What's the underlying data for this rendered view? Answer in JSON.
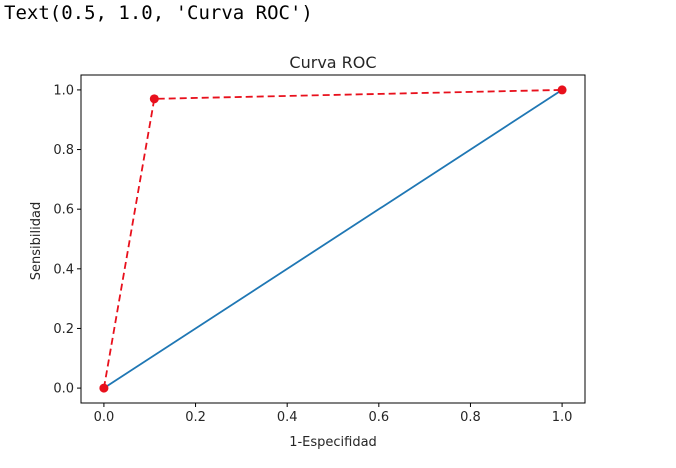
{
  "output": {
    "text": "Text(0.5, 1.0, 'Curva ROC')"
  },
  "chart_data": {
    "type": "line",
    "title": "Curva ROC",
    "xlabel": "1-Especifidad",
    "ylabel": "Sensibilidad",
    "xlim": [
      -0.05,
      1.05
    ],
    "ylim": [
      -0.05,
      1.05
    ],
    "xticks": [
      "0.0",
      "0.2",
      "0.4",
      "0.6",
      "0.8",
      "1.0"
    ],
    "yticks": [
      "0.0",
      "0.2",
      "0.4",
      "0.6",
      "0.8",
      "1.0"
    ],
    "grid": false,
    "series": [
      {
        "style": "solid",
        "color": "#1f77b4",
        "markers": false,
        "x": [
          0,
          1
        ],
        "y": [
          0,
          1
        ]
      },
      {
        "style": "dashed",
        "color": "#e8101c",
        "markers": true,
        "x": [
          0.0,
          0.11,
          1.0
        ],
        "y": [
          0.0,
          0.97,
          1.0
        ]
      }
    ]
  }
}
